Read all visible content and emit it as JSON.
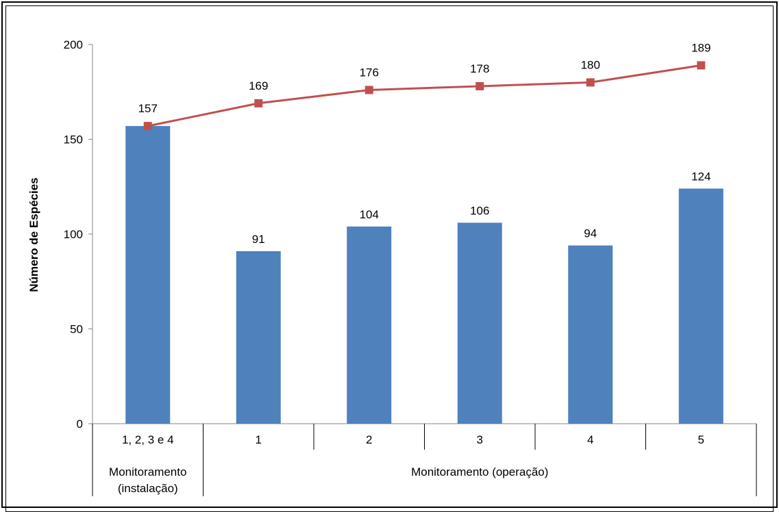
{
  "chart_data": {
    "type": "bar",
    "ylabel": "Número  de Espécies",
    "ylim": [
      0,
      200
    ],
    "yticks": [
      0,
      50,
      100,
      150,
      200
    ],
    "categories": [
      "1, 2, 3 e 4",
      "1",
      "2",
      "3",
      "4",
      "5"
    ],
    "group_labels": [
      {
        "text": "Monitoramento (instalação)",
        "lines": [
          "Monitoramento",
          "(instalação)"
        ]
      },
      {
        "text": "Monitoramento (operação)",
        "lines": [
          "Monitoramento (operação)"
        ]
      }
    ],
    "series": [
      {
        "type": "bar",
        "values": [
          157,
          91,
          104,
          106,
          94,
          124
        ],
        "color": "#4f81bd"
      },
      {
        "type": "line",
        "values": [
          157,
          169,
          176,
          178,
          180,
          189
        ],
        "color": "#c0504d",
        "marker": "square"
      }
    ],
    "grid": false,
    "legend": "none"
  }
}
